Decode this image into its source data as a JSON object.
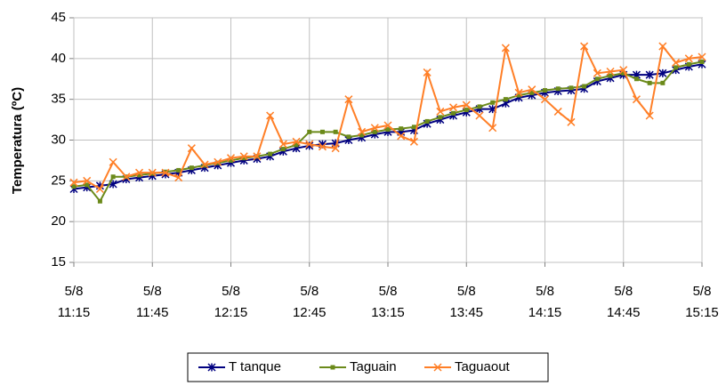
{
  "chart_data": {
    "type": "line",
    "y_label": "Temperatura (ºC)",
    "categories": [
      "5/8 11:15",
      null,
      null,
      null,
      null,
      null,
      "5/8 11:45",
      null,
      null,
      null,
      null,
      null,
      "5/8 12:15",
      null,
      null,
      null,
      null,
      null,
      "5/8 12:45",
      null,
      null,
      null,
      null,
      null,
      "5/8 13:15",
      null,
      null,
      null,
      null,
      null,
      "5/8 13:45",
      null,
      null,
      null,
      null,
      null,
      "5/8 14:15",
      null,
      null,
      null,
      null,
      null,
      "5/8 14:45",
      null,
      null,
      null,
      null,
      null,
      "5/8 15:15"
    ],
    "series": [
      {
        "name": "T tanque",
        "color": "#000080",
        "marker": "star",
        "values": [
          24.0,
          24.2,
          24.4,
          24.6,
          25.2,
          25.4,
          25.6,
          25.8,
          26.0,
          26.3,
          26.6,
          26.9,
          27.2,
          27.5,
          27.7,
          28.0,
          28.6,
          29.0,
          29.3,
          29.5,
          29.6,
          30.0,
          30.3,
          30.7,
          31.0,
          31.0,
          31.2,
          32.0,
          32.5,
          33.0,
          33.4,
          33.8,
          33.8,
          34.5,
          35.2,
          35.5,
          35.8,
          36.0,
          36.1,
          36.3,
          37.2,
          37.6,
          38.0,
          38.0,
          38.0,
          38.2,
          38.6,
          39.0,
          39.3
        ]
      },
      {
        "name": "Taguain",
        "color": "#6b8a1a",
        "marker": "square",
        "values": [
          24.3,
          24.5,
          22.5,
          25.5,
          25.5,
          25.7,
          25.9,
          26.1,
          26.3,
          26.6,
          26.9,
          27.2,
          27.5,
          27.8,
          28.0,
          28.3,
          28.9,
          29.4,
          31.0,
          31.0,
          31.0,
          30.4,
          30.6,
          31.0,
          31.3,
          31.4,
          31.6,
          32.3,
          32.8,
          33.3,
          33.7,
          34.1,
          34.6,
          35.0,
          35.5,
          35.8,
          36.1,
          36.3,
          36.4,
          36.6,
          37.5,
          37.9,
          38.2,
          37.5,
          37.0,
          37.0,
          38.9,
          39.3,
          39.6
        ]
      },
      {
        "name": "Taguaout",
        "color": "#ff7f27",
        "marker": "x",
        "values": [
          24.8,
          25.0,
          24.0,
          27.3,
          25.5,
          26.0,
          26.0,
          26.0,
          25.4,
          29.0,
          27.0,
          27.3,
          27.8,
          28.0,
          28.0,
          33.0,
          29.5,
          29.8,
          29.5,
          29.2,
          29.0,
          35.0,
          31.0,
          31.5,
          31.8,
          30.5,
          29.8,
          38.3,
          33.5,
          34.0,
          34.3,
          33.0,
          31.5,
          41.3,
          35.8,
          36.2,
          35.0,
          33.5,
          32.2,
          41.5,
          38.2,
          38.4,
          38.6,
          35.0,
          33.0,
          41.5,
          39.5,
          40.0,
          40.2
        ]
      }
    ],
    "ylim": [
      15,
      45
    ],
    "yticks": [
      15,
      20,
      25,
      30,
      35,
      40,
      45
    ],
    "grid": true,
    "legend": "bottom"
  }
}
